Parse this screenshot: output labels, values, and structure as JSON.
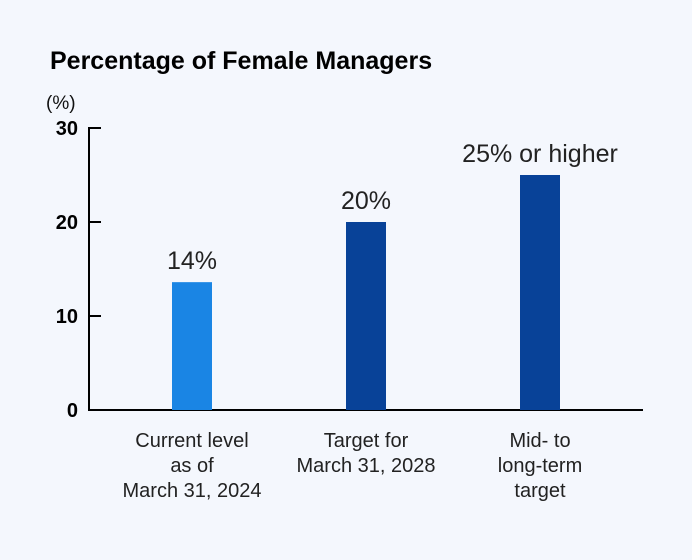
{
  "chart_data": {
    "type": "bar",
    "title": "Percentage of Female Managers",
    "ylabel": "(%)",
    "ylim": [
      0,
      30
    ],
    "yticks": [
      0,
      10,
      20,
      30
    ],
    "categories": [
      [
        "Current level",
        "as of",
        "March 31, 2024"
      ],
      [
        "Target for",
        "March 31, 2028"
      ],
      [
        "Mid- to",
        "long-term",
        "target"
      ]
    ],
    "values": [
      13.6,
      20,
      25
    ],
    "value_labels": [
      "14%",
      "20%",
      "25% or higher"
    ],
    "colors": [
      "#1a85e4",
      "#084298",
      "#084298"
    ],
    "grid": false,
    "legend": "none"
  }
}
